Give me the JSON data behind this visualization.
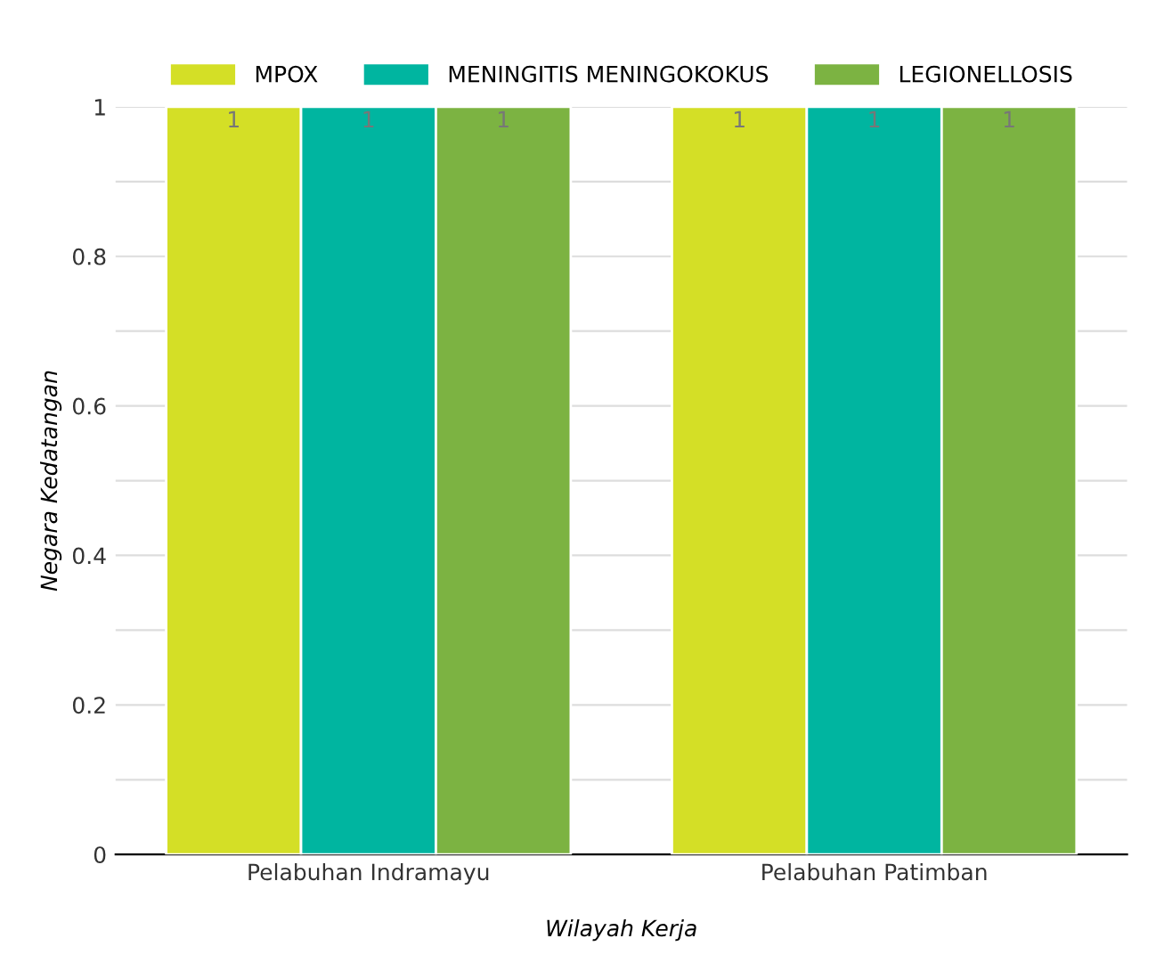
{
  "chart_data": {
    "type": "bar",
    "xlabel": "Wilayah Kerja",
    "ylabel": "Negara Kedatangan",
    "categories": [
      "Pelabuhan Indramayu",
      "Pelabuhan Patimban"
    ],
    "series": [
      {
        "name": "MPOX",
        "color": "#d4df26",
        "values": [
          1,
          1
        ]
      },
      {
        "name": "MENINGITIS MENINGOKOKUS",
        "color": "#00b5a0",
        "values": [
          1,
          1
        ]
      },
      {
        "name": "LEGIONELLOSIS",
        "color": "#7cb342",
        "values": [
          1,
          1
        ]
      }
    ],
    "ylim": [
      0,
      1
    ],
    "yticks": [
      0,
      {
        "value": 0.1,
        "label": null
      },
      0.2,
      {
        "value": 0.3,
        "label": null
      },
      0.4,
      {
        "value": 0.5,
        "label": null
      },
      0.6,
      {
        "value": 0.7,
        "label": null
      },
      0.8,
      {
        "value": 0.9,
        "label": null
      },
      1
    ],
    "grid": "y",
    "legend": "top",
    "data_labels": true
  }
}
